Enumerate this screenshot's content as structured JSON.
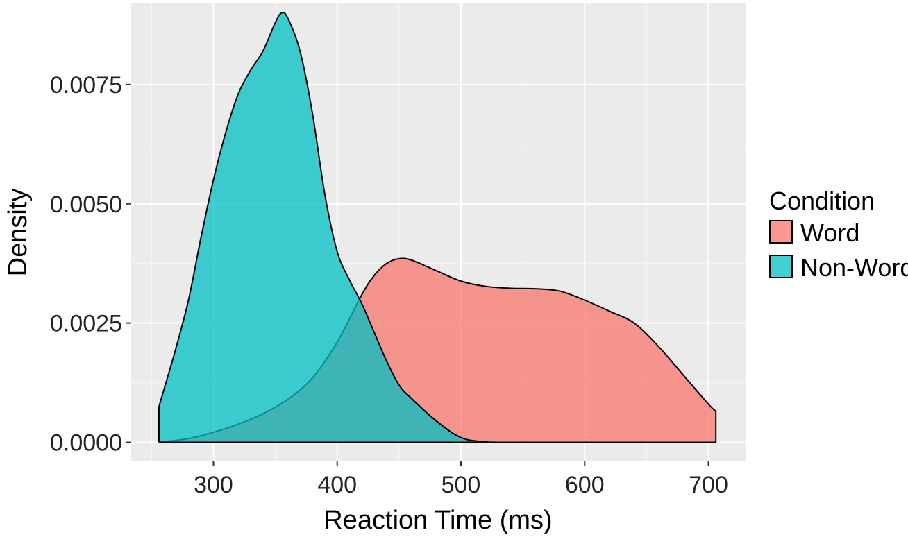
{
  "chart_data": {
    "type": "area",
    "subtype": "density",
    "title": "",
    "xlabel": "Reaction Time (ms)",
    "ylabel": "Density",
    "xlim": [
      233,
      730
    ],
    "ylim": [
      -0.0004,
      0.0092
    ],
    "x_ticks": [
      300,
      400,
      500,
      600,
      700
    ],
    "x_tick_labels": [
      "300",
      "400",
      "500",
      "600",
      "700"
    ],
    "y_ticks": [
      0.0,
      0.0025,
      0.005,
      0.0075
    ],
    "y_tick_labels": [
      "0.0000",
      "0.0025",
      "0.0050",
      "0.0075"
    ],
    "grid": true,
    "legend": {
      "title": "Condition",
      "position": "right"
    },
    "series": [
      {
        "name": "Word",
        "color": "#F8766D",
        "fill_opacity": 0.75,
        "x": [
          256,
          280,
          300,
          320,
          340,
          360,
          380,
          400,
          420,
          430,
          440,
          450,
          460,
          480,
          500,
          520,
          540,
          560,
          580,
          600,
          620,
          640,
          660,
          680,
          700,
          706
        ],
        "y": [
          0.0,
          8e-05,
          0.00021,
          0.00038,
          0.0006,
          0.0009,
          0.00135,
          0.0021,
          0.0031,
          0.0035,
          0.00375,
          0.00385,
          0.00382,
          0.0036,
          0.00338,
          0.00327,
          0.00323,
          0.00322,
          0.00317,
          0.00298,
          0.00275,
          0.0025,
          0.002,
          0.0014,
          0.0008,
          0.00065
        ]
      },
      {
        "name": "Non-Word",
        "color": "#00BFC4",
        "fill_opacity": 0.75,
        "x": [
          256,
          270,
          280,
          290,
          300,
          310,
          320,
          330,
          340,
          350,
          355,
          360,
          370,
          380,
          390,
          400,
          410,
          420,
          430,
          440,
          450,
          460,
          480,
          500,
          520,
          540,
          560,
          600,
          706
        ],
        "y": [
          0.00075,
          0.002,
          0.003,
          0.0043,
          0.0055,
          0.0065,
          0.0073,
          0.0078,
          0.0082,
          0.0088,
          0.009,
          0.0089,
          0.0082,
          0.0069,
          0.0052,
          0.004,
          0.0034,
          0.0029,
          0.0023,
          0.0017,
          0.0012,
          0.00092,
          0.00045,
          0.0001,
          1e-05,
          0.0,
          0.0,
          0.0,
          0.0
        ]
      }
    ]
  }
}
